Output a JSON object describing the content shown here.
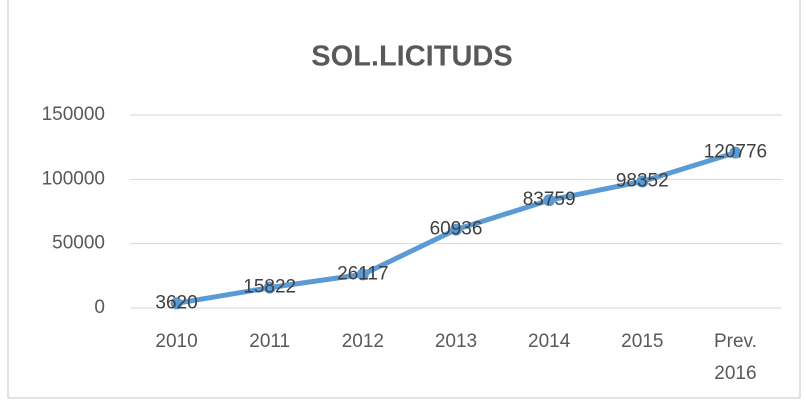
{
  "chart_data": {
    "type": "line",
    "title": "SOL.LICITUDS",
    "categories": [
      "2010",
      "2011",
      "2012",
      "2013",
      "2014",
      "2015",
      "Prev. 2016"
    ],
    "series": [
      {
        "color": "#5b9bd5",
        "values": [
          3620,
          15822,
          26117,
          60936,
          83759,
          98352,
          120776
        ]
      }
    ],
    "ylim": [
      0,
      150000
    ],
    "yticks": [
      0,
      50000,
      100000,
      150000
    ],
    "grid": true
  }
}
